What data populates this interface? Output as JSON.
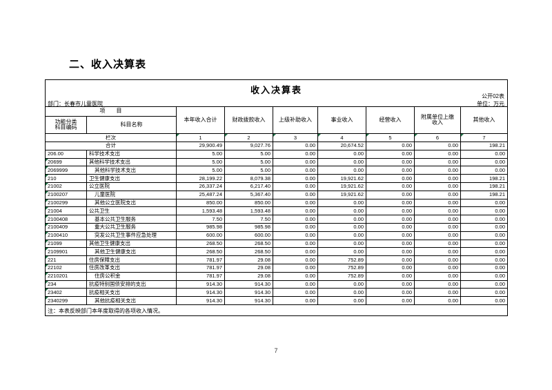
{
  "page": {
    "section_heading": "二、收入决算表",
    "page_number": "7"
  },
  "report": {
    "title": "收入决算表",
    "table_code": "公开02表",
    "department_label": "部门：长春市儿童医院",
    "unit_label": "单位：万元",
    "note": "注：本表反映部门本年度取得的各项收入情况。"
  },
  "colors": {
    "marker_green": "#1e7145"
  },
  "table": {
    "item_header": "项　　目",
    "code_header": "功能分类\n科目编码",
    "name_header": "科目名称",
    "columns": [
      "本年收入合计",
      "财政拨款收入",
      "上级补助收入",
      "事业收入",
      "经营收入",
      "附属单位上缴\n收入",
      "其他收入"
    ],
    "lane_label": "栏次",
    "lane_numbers": [
      "1",
      "2",
      "3",
      "4",
      "5",
      "6",
      "7"
    ],
    "total_row": {
      "label": "合计",
      "values": [
        "29,900.49",
        "9,027.76",
        "0.00",
        "20,674.52",
        "0.00",
        "0.00",
        "198.21"
      ]
    },
    "rows": [
      {
        "code": "206.00",
        "name": "科学技术支出",
        "indent": false,
        "marker": false,
        "values": [
          "5.00",
          "5.00",
          "0.00",
          "0.00",
          "0.00",
          "0.00",
          "0.00"
        ]
      },
      {
        "code": "20699",
        "name": "其他科学技术支出",
        "indent": false,
        "marker": true,
        "values": [
          "5.00",
          "5.00",
          "0.00",
          "0.00",
          "0.00",
          "0.00",
          "0.00"
        ]
      },
      {
        "code": "2069999",
        "name": "其他科学技术支出",
        "indent": true,
        "marker": true,
        "values": [
          "5.00",
          "5.00",
          "0.00",
          "0.00",
          "0.00",
          "0.00",
          "0.00"
        ]
      },
      {
        "code": "210",
        "name": "卫生健康支出",
        "indent": false,
        "marker": true,
        "values": [
          "28,199.22",
          "8,079.38",
          "0.00",
          "19,921.62",
          "0.00",
          "0.00",
          "198.21"
        ]
      },
      {
        "code": "21002",
        "name": "公立医院",
        "indent": false,
        "marker": true,
        "values": [
          "26,337.24",
          "6,217.40",
          "0.00",
          "19,921.62",
          "0.00",
          "0.00",
          "198.21"
        ]
      },
      {
        "code": "2100207",
        "name": "儿童医院",
        "indent": true,
        "marker": true,
        "values": [
          "25,487.24",
          "5,367.40",
          "0.00",
          "19,921.62",
          "0.00",
          "0.00",
          "198.21"
        ]
      },
      {
        "code": "2100299",
        "name": "其他公立医院支出",
        "indent": true,
        "marker": true,
        "values": [
          "850.00",
          "850.00",
          "0.00",
          "0.00",
          "0.00",
          "0.00",
          "0.00"
        ]
      },
      {
        "code": "21004",
        "name": "公共卫生",
        "indent": false,
        "marker": true,
        "values": [
          "1,593.48",
          "1,593.48",
          "0.00",
          "0.00",
          "0.00",
          "0.00",
          "0.00"
        ]
      },
      {
        "code": "2100408",
        "name": "基本公共卫生服务",
        "indent": true,
        "marker": true,
        "values": [
          "7.50",
          "7.50",
          "0.00",
          "0.00",
          "0.00",
          "0.00",
          "0.00"
        ]
      },
      {
        "code": "2100409",
        "name": "重大公共卫生服务",
        "indent": true,
        "marker": true,
        "values": [
          "985.98",
          "985.98",
          "0.00",
          "0.00",
          "0.00",
          "0.00",
          "0.00"
        ]
      },
      {
        "code": "2100410",
        "name": "突发公共卫生事件应急处理",
        "indent": true,
        "marker": true,
        "values": [
          "600.00",
          "600.00",
          "0.00",
          "0.00",
          "0.00",
          "0.00",
          "0.00"
        ]
      },
      {
        "code": "21099",
        "name": "其他卫生健康支出",
        "indent": false,
        "marker": true,
        "values": [
          "268.50",
          "268.50",
          "0.00",
          "0.00",
          "0.00",
          "0.00",
          "0.00"
        ]
      },
      {
        "code": "2109901",
        "name": "其他卫生健康支出",
        "indent": true,
        "marker": true,
        "values": [
          "268.50",
          "268.50",
          "0.00",
          "0.00",
          "0.00",
          "0.00",
          "0.00"
        ]
      },
      {
        "code": "221",
        "name": "住房保障支出",
        "indent": false,
        "marker": true,
        "values": [
          "781.97",
          "29.08",
          "0.00",
          "752.89",
          "0.00",
          "0.00",
          "0.00"
        ]
      },
      {
        "code": "22102",
        "name": "住房改革支出",
        "indent": false,
        "marker": true,
        "values": [
          "781.97",
          "29.08",
          "0.00",
          "752.89",
          "0.00",
          "0.00",
          "0.00"
        ]
      },
      {
        "code": "2210201",
        "name": "住房公积金",
        "indent": true,
        "marker": true,
        "values": [
          "781.97",
          "29.08",
          "0.00",
          "752.89",
          "0.00",
          "0.00",
          "0.00"
        ]
      },
      {
        "code": "234",
        "name": "抗疫特别国债安排的支出",
        "indent": false,
        "marker": true,
        "values": [
          "914.30",
          "914.30",
          "0.00",
          "0.00",
          "0.00",
          "0.00",
          "0.00"
        ]
      },
      {
        "code": "23402",
        "name": "抗疫相关支出",
        "indent": false,
        "marker": true,
        "values": [
          "914.30",
          "914.30",
          "0.00",
          "0.00",
          "0.00",
          "0.00",
          "0.00"
        ]
      },
      {
        "code": "2340299",
        "name": "其他抗疫相关支出",
        "indent": true,
        "marker": true,
        "values": [
          "914.30",
          "914.30",
          "0.00",
          "0.00",
          "0.00",
          "0.00",
          "0.00"
        ]
      }
    ]
  }
}
